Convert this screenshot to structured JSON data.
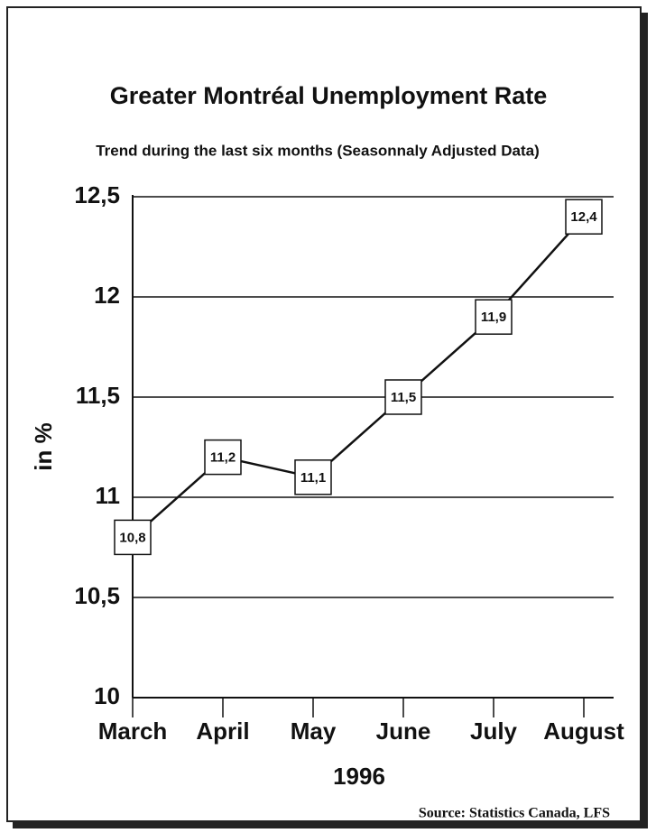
{
  "chart_data": {
    "type": "line",
    "title": "Greater Montréal Unemployment Rate",
    "subtitle": "Trend during the last six months (Seasonnaly Adjusted Data)",
    "y_label": "in %",
    "x_label": "1996",
    "source": "Source: Statistics Canada, LFS",
    "categories": [
      "March",
      "April",
      "May",
      "June",
      "July",
      "August"
    ],
    "values": [
      10.8,
      11.2,
      11.1,
      11.5,
      11.9,
      12.4
    ],
    "value_labels": [
      "10,8",
      "11,2",
      "11,1",
      "11,5",
      "11,9",
      "12,4"
    ],
    "color": "#111111",
    "ylim": [
      10,
      12.5
    ],
    "yticks": [
      10,
      {
        "value": 10.5,
        "label": "10,5"
      },
      11,
      {
        "value": 11.5,
        "label": "11,5"
      },
      12,
      {
        "value": 12.5,
        "label": "12,5"
      }
    ],
    "grid": true
  }
}
